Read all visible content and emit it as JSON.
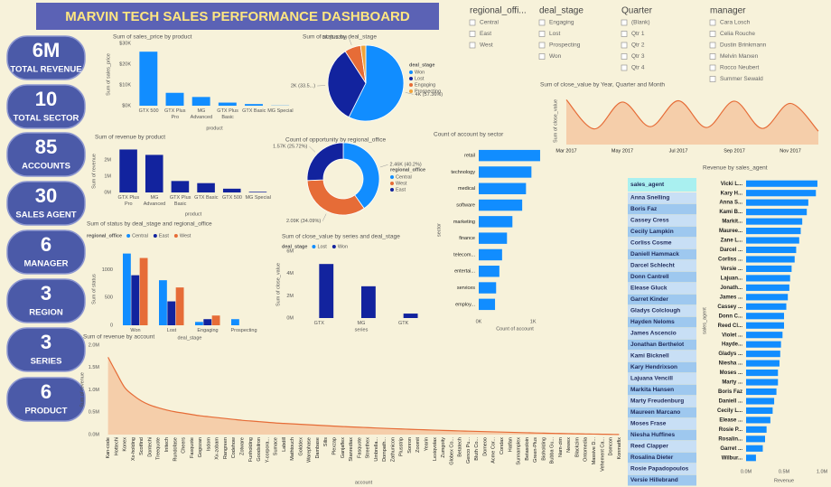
{
  "header": {
    "title": "MARVIN TECH SALES PERFORMANCE DASHBOARD"
  },
  "kpis": [
    {
      "value": "6M",
      "label": "TOTAL REVENUE"
    },
    {
      "value": "10",
      "label": "TOTAL SECTOR"
    },
    {
      "value": "85",
      "label": "ACCOUNTS"
    },
    {
      "value": "30",
      "label": "SALES AGENT"
    },
    {
      "value": "6",
      "label": "MANAGER"
    },
    {
      "value": "3",
      "label": "REGION"
    },
    {
      "value": "3",
      "label": "SERIES"
    },
    {
      "value": "6",
      "label": "PRODUCT"
    }
  ],
  "slicers": [
    {
      "title": "regional_offi...",
      "options": [
        "Central",
        "East",
        "West"
      ]
    },
    {
      "title": "deal_stage",
      "options": [
        "Engaging",
        "Lost",
        "Prospecting",
        "Won"
      ]
    },
    {
      "title": "Quarter",
      "options": [
        "(Blank)",
        "Qtr 1",
        "Qtr 2",
        "Qtr 3",
        "Qtr 4"
      ]
    },
    {
      "title": "manager",
      "options": [
        "Cara Losch",
        "Celia Rouche",
        "Dustin Brinkmann",
        "Melvin Marxen",
        "Rocco Neubert",
        "Summer Sewald"
      ]
    }
  ],
  "agent_table": {
    "header": "sales_agent",
    "rows": [
      "Anna Snelling",
      "Boris Faz",
      "Cassey Cress",
      "Cecily Lampkin",
      "Corliss Cosme",
      "Daniell Hammack",
      "Darcel Schlecht",
      "Donn Cantrell",
      "Elease Gluck",
      "Garret Kinder",
      "Gladys Colclough",
      "Hayden Neloms",
      "James Ascencio",
      "Jonathan Berthelot",
      "Kami Bicknell",
      "Kary Hendrixson",
      "Lajuana Vencill",
      "Markita Hansen",
      "Marty Freudenburg",
      "Maureen Marcano",
      "Moses Frase",
      "Niesha Huffines",
      "Reed Clapper",
      "Rosalina Dieter",
      "Rosie Papadopoulos",
      "Versie Hillebrand"
    ]
  },
  "chart_data": [
    {
      "type": "bar",
      "title": "Sum of sales_price by product",
      "x_label": "product",
      "y_label": "Sum of sales_price",
      "categories": [
        "GTX 500",
        "GTX Plus Pro",
        "MG Advanced",
        "GTX Plus Basic",
        "GTX Basic",
        "MG Special"
      ],
      "values": [
        26000,
        6200,
        4200,
        1500,
        800,
        100
      ],
      "color": "#118dff",
      "ylim": [
        0,
        30000
      ],
      "yticks": [
        {
          "value": 0,
          "label": "$0K"
        },
        {
          "value": 10000,
          "label": "$10K"
        },
        {
          "value": 20000,
          "label": "$20K"
        },
        {
          "value": 30000,
          "label": "$30K"
        }
      ],
      "grid": false
    },
    {
      "type": "pie",
      "title": "Sum of status by deal_stage",
      "legend_title": "deal_stage",
      "categories": [
        "Won",
        "Lost",
        "Engaging",
        "Prospecting"
      ],
      "values": [
        4238,
        2473,
        512,
        165
      ],
      "value_labels": [
        "4K (57.36%)",
        "2K (33.5...)",
        "0K (6.93%)",
        null
      ],
      "colors": [
        "#118dff",
        "#12239e",
        "#e66c37",
        "#f2a33a"
      ]
    },
    {
      "type": "bar",
      "title": "Sum of revenue by product",
      "x_label": "product",
      "y_label": "Sum of revenue",
      "categories": [
        "GTX Plus Pro",
        "MG Advanced",
        "GTX Plus Basic",
        "GTX Basic",
        "GTX 500",
        "MG Special"
      ],
      "values": [
        2630000,
        2300000,
        700000,
        570000,
        230000,
        40000
      ],
      "color": "#12239e",
      "ylim": [
        0,
        2600000
      ],
      "yticks": [
        {
          "value": 0,
          "label": "0M"
        },
        {
          "value": 1000000,
          "label": "1M"
        },
        {
          "value": 2000000,
          "label": "2M"
        }
      ],
      "grid": false
    },
    {
      "type": "donut",
      "title": "Count of opportunity by regional_office",
      "legend_title": "regional_office",
      "categories": [
        "Central",
        "West",
        "East"
      ],
      "values": [
        2459,
        2086,
        1574
      ],
      "value_labels": [
        "2.46K (40.2%)",
        "2.09K (34.09%)",
        "1.57K (25.72%)"
      ],
      "colors": [
        "#118dff",
        "#e66c37",
        "#12239e"
      ]
    },
    {
      "type": "hbar",
      "title": "Count of account by sector",
      "x_label": "Count of account",
      "y_label": "sector",
      "categories": [
        "retail",
        "technology",
        "medical",
        "software",
        "marketing",
        "finance",
        "telecom...",
        "entertai...",
        "services",
        "employ..."
      ],
      "values": [
        1130,
        970,
        870,
        800,
        620,
        520,
        430,
        380,
        320,
        300
      ],
      "color": "#118dff",
      "xlim": [
        0,
        1330
      ],
      "xticks": [
        {
          "value": 0,
          "label": "0K"
        },
        {
          "value": 1000,
          "label": "1K"
        }
      ],
      "grid": false
    },
    {
      "type": "line",
      "title": "Sum of close_value by Year, Quarter and Month",
      "y_label": "Sum of close_value",
      "categories": [
        "Mar 2017",
        null,
        "May 2017",
        null,
        "Jul 2017",
        null,
        "Sep 2017",
        null,
        "Nov 2017",
        null
      ],
      "values": [
        1000000,
        350000,
        950000,
        400000,
        980000,
        380000,
        970000,
        360000,
        920000,
        300000
      ],
      "color": "#e66c37",
      "ylim": [
        0,
        1050000
      ]
    },
    {
      "type": "bar",
      "title": "Sum of status by deal_stage and regional_office",
      "x_label": "deal_stage",
      "y_label": "Sum of status",
      "legend_title": "regional_office",
      "categories": [
        "Won",
        "Lost",
        "Engaging",
        "Prospecting"
      ],
      "series": [
        {
          "name": "Central",
          "color": "#118dff",
          "values": [
            1290,
            810,
            60,
            110
          ]
        },
        {
          "name": "East",
          "color": "#12239e",
          "values": [
            900,
            430,
            110,
            null
          ]
        },
        {
          "name": "West",
          "color": "#e66c37",
          "values": [
            1210,
            680,
            175,
            null
          ]
        }
      ],
      "ylim": [
        0,
        1300
      ],
      "yticks": [
        0,
        500,
        1000
      ],
      "grid": false
    },
    {
      "type": "bar",
      "title": "Sum of close_value by series and deal_stage",
      "x_label": "series",
      "y_label": "Sum of close_value",
      "legend_title": "deal_stage",
      "categories": [
        "GTX",
        "MG",
        "GTK"
      ],
      "series": [
        {
          "name": "Lost",
          "color": "#118dff",
          "values": [
            null,
            null,
            null
          ]
        },
        {
          "name": "Won",
          "color": "#12239e",
          "values": [
            4850000,
            2850000,
            400000
          ]
        }
      ],
      "ylim": [
        0,
        6000000
      ],
      "yticks": [
        {
          "value": 0,
          "label": "0M"
        },
        {
          "value": 2000000,
          "label": "2M"
        },
        {
          "value": 4000000,
          "label": "4M"
        },
        {
          "value": 6000000,
          "label": "6M"
        }
      ],
      "grid": false
    },
    {
      "type": "area",
      "title": "Sum of revenue by account",
      "x_label": "account",
      "y_label": "Sum of revenue",
      "categories": [
        "Kan-code",
        "Hottechi",
        "Konex",
        "Xx-holding",
        "Scotfind",
        "Dontechi",
        "Treequote",
        "Initech",
        "Rundofase",
        "Cheers",
        "Faxquote",
        "Gogozan",
        "Isdom",
        "Xx-zobam",
        "Rangreen",
        "Codehow",
        "Zotware",
        "Funholding",
        "Goodsilron",
        "Y-corpora...",
        "Sumace",
        "Labdill",
        "Mathtouch",
        "Golddex",
        "Warephase",
        "Dambase",
        "Silis",
        "Plexzap",
        "Ganjaflex",
        "Stanredtax",
        "Fasquote",
        "Streethex",
        "Umbrella...",
        "Dompath...",
        "Zathunicon",
        "Plusstrip",
        "Sonron",
        "Zoomit",
        "Yearin",
        "Lexiqvolax",
        "Zumgoity",
        "Globex Co...",
        "Betatech",
        "Genco Pu...",
        "Bluth Co...",
        "Domeoo",
        "Acme Cor...",
        "Condax",
        "Hatfan",
        "Sunnamplex",
        "Betasoloin",
        "Green-Plus",
        "Bioholding",
        "Bubba Gu...",
        "Nam-zim",
        "Newex",
        "Blackzim",
        "Ontomedia",
        "Massive D...",
        "Vehement Ca...",
        "Domcon",
        "Konmatfix"
      ],
      "values": [
        1730000,
        1380000,
        1050000,
        880000,
        750000,
        660000,
        600000,
        550000,
        510000,
        480000,
        450000,
        420000,
        400000,
        380000,
        360000,
        340000,
        320000,
        305000,
        290000,
        275000,
        260000,
        250000,
        240000,
        230000,
        220000,
        210000,
        200000,
        190000,
        180000,
        172000,
        164000,
        156000,
        148000,
        140000,
        133000,
        126000,
        119000,
        112000,
        106000,
        100000,
        94000,
        88000,
        82000,
        77000,
        72000,
        67000,
        62000,
        57000,
        52000,
        47000,
        42000,
        37000,
        33000,
        29000,
        25000,
        21000,
        17000,
        14000,
        11000,
        8000,
        5000,
        3000
      ],
      "color": "#e66c37",
      "ylim": [
        0,
        2000000
      ],
      "yticks": [
        {
          "value": 0,
          "label": "0.0M"
        },
        {
          "value": 500000,
          "label": "0.5M"
        },
        {
          "value": 1000000,
          "label": "1.0M"
        },
        {
          "value": 1500000,
          "label": "1.5M"
        },
        {
          "value": 2000000,
          "label": "2.0M"
        }
      ],
      "grid": false
    },
    {
      "type": "hbar",
      "title": "Revenue by sales_agent",
      "x_label": "Revenue",
      "y_label": "sales_agent",
      "categories": [
        "Vicki L...",
        "Kary H...",
        "Anna S...",
        "Kami B...",
        "Markit...",
        "Mauree...",
        "Zane L...",
        "Darcel ...",
        "Corliss ...",
        "Versie ...",
        "Lajuan...",
        "Jonath...",
        "James ...",
        "Cassey ...",
        "Donn C...",
        "Reed Cl...",
        "Violet ...",
        "Hayde...",
        "Gladys ...",
        "Niesha ...",
        "Moses ...",
        "Marty ...",
        "Boris Faz",
        "Daniell ...",
        "Cecily L...",
        "Elease ...",
        "Rosie P...",
        "Rosalin...",
        "Garret ...",
        "Wilbur..."
      ],
      "values": [
        940000,
        920000,
        820000,
        800000,
        740000,
        720000,
        700000,
        660000,
        640000,
        600000,
        580000,
        570000,
        550000,
        530000,
        500000,
        500000,
        480000,
        460000,
        450000,
        440000,
        420000,
        420000,
        400000,
        370000,
        350000,
        320000,
        270000,
        250000,
        220000,
        130000
      ],
      "color": "#118dff",
      "xlim": [
        0,
        1000000
      ],
      "xticks": [
        {
          "value": 0,
          "label": "0.0M"
        },
        {
          "value": 500000,
          "label": "0.5M"
        },
        {
          "value": 1000000,
          "label": "1.0M"
        }
      ],
      "grid": false
    }
  ]
}
